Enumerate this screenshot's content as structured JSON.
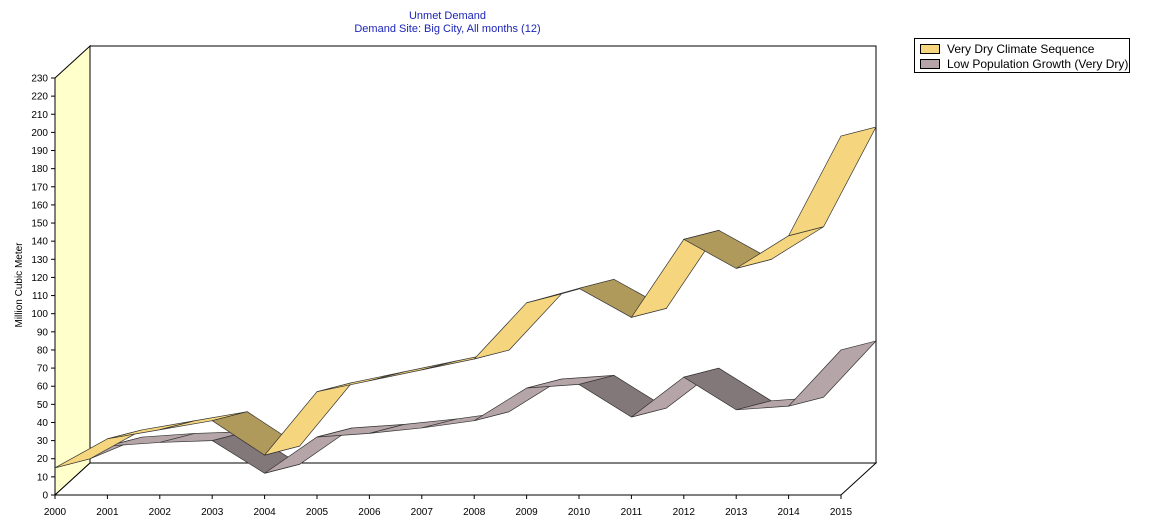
{
  "chart_data": {
    "type": "line",
    "style": "3d-ribbon",
    "title": "Unmet Demand",
    "subtitle": "Demand Site: Big City,  All months (12)",
    "ylabel": "Million Cubic Meter",
    "xlabel": "",
    "ylim": [
      0,
      230
    ],
    "y_ticks": [
      "0",
      "10",
      "20",
      "30",
      "40",
      "50",
      "60",
      "70",
      "80",
      "90",
      "100",
      "110",
      "120",
      "130",
      "140",
      "150",
      "160",
      "170",
      "180",
      "190",
      "200",
      "210",
      "220",
      "230"
    ],
    "categories": [
      "2000",
      "2001",
      "2002",
      "2003",
      "2004",
      "2005",
      "2006",
      "2007",
      "2008",
      "2009",
      "2010",
      "2011",
      "2012",
      "2013",
      "2014",
      "2015"
    ],
    "grid": false,
    "legend_position": "top-right",
    "series": [
      {
        "name": "Very Dry Climate Sequence",
        "color": "#f5d67e",
        "values": [
          15,
          31,
          36,
          41,
          22,
          57,
          63,
          69,
          75,
          106,
          114,
          98,
          141,
          125,
          143,
          198
        ]
      },
      {
        "name": "Low Population Growth (Very Dry)",
        "color": "#b5a5a8",
        "values": [
          15,
          27,
          29,
          30,
          12,
          32,
          34,
          37,
          41,
          59,
          61,
          43,
          65,
          47,
          49,
          80
        ]
      }
    ]
  }
}
